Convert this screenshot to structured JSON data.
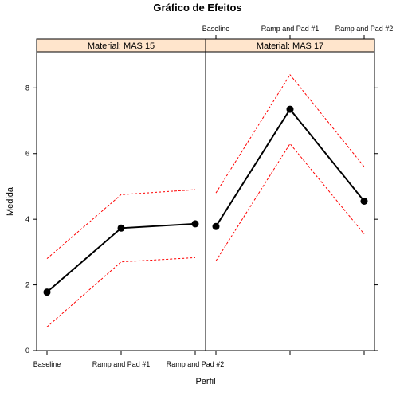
{
  "chart_data": {
    "type": "line",
    "title": "Gráfico de Efeitos",
    "xlabel": "Perfil",
    "ylabel": "Medida",
    "categories": [
      "Baseline",
      "Ramp and Pad #1",
      "Ramp and Pad #2"
    ],
    "ylim": [
      0,
      9.1
    ],
    "yticks": [
      0,
      2,
      4,
      6,
      8
    ],
    "grid": false,
    "colors": {
      "effect": "#000000",
      "ci": "#ff0000",
      "strip": "#ffe5cc"
    },
    "panels": [
      {
        "strip": "Material: MAS 15",
        "series": [
          {
            "role": "effect",
            "values": [
              1.78,
              3.73,
              3.86
            ]
          },
          {
            "role": "upper",
            "values": [
              2.8,
              4.75,
              4.9
            ]
          },
          {
            "role": "lower",
            "values": [
              0.72,
              2.7,
              2.83
            ]
          }
        ]
      },
      {
        "strip": "Material: MAS 17",
        "series": [
          {
            "role": "effect",
            "values": [
              3.78,
              7.35,
              4.55
            ]
          },
          {
            "role": "upper",
            "values": [
              4.8,
              8.4,
              5.6
            ]
          },
          {
            "role": "lower",
            "values": [
              2.73,
              6.3,
              3.55
            ]
          }
        ]
      }
    ]
  }
}
